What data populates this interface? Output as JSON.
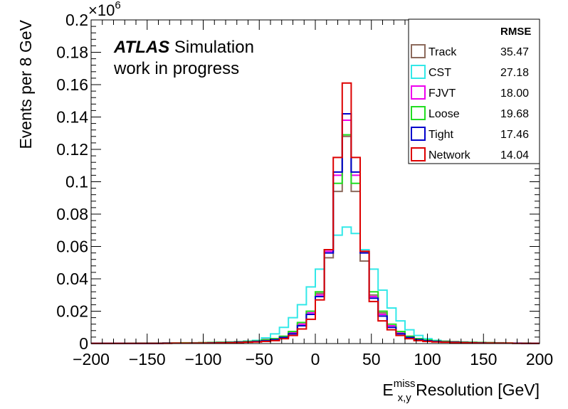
{
  "chart_data": {
    "type": "line",
    "style": "step-histogram",
    "xlabel_main": "E",
    "xlabel_sup": "miss",
    "xlabel_sub": "x,y",
    "xlabel_rest": " Resolution [GeV]",
    "ylabel": "Events per 8 GeV",
    "y_multiplier": "×10",
    "y_multiplier_exp": "6",
    "xlim": [
      -200,
      200
    ],
    "ylim": [
      0,
      0.2
    ],
    "xticks": [
      -200,
      -150,
      -100,
      -50,
      0,
      50,
      100,
      150,
      200
    ],
    "xtick_labels": [
      "−200",
      "−150",
      "−100",
      "−50",
      "0",
      "50",
      "100",
      "150",
      "200"
    ],
    "yticks": [
      0,
      0.02,
      0.04,
      0.06,
      0.08,
      0.1,
      0.12,
      0.14,
      0.16,
      0.18,
      0.2
    ],
    "ytick_labels": [
      "0",
      "0.02",
      "0.04",
      "0.06",
      "0.08",
      "0.1",
      "0.12",
      "0.14",
      "0.16",
      "0.18",
      "0.2"
    ],
    "bin_width": 8,
    "bin_edges_start": -200,
    "legend_position": "top-right",
    "annotation_bold": "ATLAS",
    "annotation_rest": " Simulation",
    "annotation_line2": "work in progress",
    "legend_header": "RMSE",
    "series": [
      {
        "name": "Track",
        "rmse": "35.47",
        "color": "#8c6a5c",
        "values": [
          0.0002,
          0.0002,
          0.0002,
          0.0002,
          0.0002,
          0.0003,
          0.0003,
          0.0003,
          0.0004,
          0.0004,
          0.0005,
          0.0005,
          0.0006,
          0.0007,
          0.0008,
          0.001,
          0.0012,
          0.0015,
          0.002,
          0.0025,
          0.003,
          0.0045,
          0.007,
          0.012,
          0.02,
          0.031,
          0.053,
          0.094,
          0.128,
          0.094,
          0.051,
          0.03,
          0.019,
          0.011,
          0.0065,
          0.0045,
          0.003,
          0.0025,
          0.002,
          0.0015,
          0.0012,
          0.001,
          0.0008,
          0.0007,
          0.0006,
          0.0005,
          0.0004,
          0.0003,
          0.0003,
          0.0002
        ]
      },
      {
        "name": "CST",
        "rmse": "27.18",
        "color": "#33e8e8",
        "values": [
          0.0001,
          0.0001,
          0.0001,
          0.0001,
          0.0001,
          0.0001,
          0.0001,
          0.0002,
          0.0002,
          0.0002,
          0.0003,
          0.0003,
          0.0004,
          0.0005,
          0.0006,
          0.0008,
          0.001,
          0.0015,
          0.002,
          0.0035,
          0.006,
          0.01,
          0.016,
          0.024,
          0.035,
          0.046,
          0.058,
          0.067,
          0.072,
          0.068,
          0.058,
          0.046,
          0.033,
          0.022,
          0.014,
          0.0085,
          0.005,
          0.003,
          0.002,
          0.0012,
          0.0008,
          0.0006,
          0.0004,
          0.0003,
          0.0003,
          0.0002,
          0.0002,
          0.0001,
          0.0001,
          0.0001
        ]
      },
      {
        "name": "FJVT",
        "rmse": "18.00",
        "color": "#ee00ee",
        "values": [
          0.0001,
          0.0001,
          0.0001,
          0.0001,
          0.0001,
          0.0001,
          0.0001,
          0.0001,
          0.0002,
          0.0002,
          0.0002,
          0.0003,
          0.0003,
          0.0004,
          0.0005,
          0.0006,
          0.0008,
          0.001,
          0.0013,
          0.0018,
          0.0025,
          0.004,
          0.0065,
          0.012,
          0.019,
          0.03,
          0.057,
          0.104,
          0.138,
          0.104,
          0.057,
          0.029,
          0.018,
          0.011,
          0.0063,
          0.004,
          0.0025,
          0.0018,
          0.0013,
          0.001,
          0.0008,
          0.0006,
          0.0005,
          0.0004,
          0.0003,
          0.0003,
          0.0002,
          0.0002,
          0.0001,
          0.0001
        ]
      },
      {
        "name": "Loose",
        "rmse": "19.68",
        "color": "#22dd22",
        "values": [
          0.0001,
          0.0001,
          0.0001,
          0.0001,
          0.0002,
          0.0002,
          0.0002,
          0.0002,
          0.0003,
          0.0003,
          0.0004,
          0.0004,
          0.0005,
          0.0006,
          0.0007,
          0.0008,
          0.001,
          0.0013,
          0.0016,
          0.0022,
          0.003,
          0.0045,
          0.0075,
          0.013,
          0.02,
          0.032,
          0.058,
          0.099,
          0.129,
          0.099,
          0.057,
          0.032,
          0.02,
          0.012,
          0.0075,
          0.0045,
          0.003,
          0.0022,
          0.0016,
          0.0013,
          0.001,
          0.0008,
          0.0007,
          0.0006,
          0.0005,
          0.0004,
          0.0003,
          0.0002,
          0.0002,
          0.0001
        ]
      },
      {
        "name": "Tight",
        "rmse": "17.46",
        "color": "#0000cc",
        "values": [
          0.0001,
          0.0001,
          0.0001,
          0.0001,
          0.0001,
          0.0001,
          0.0001,
          0.0001,
          0.0002,
          0.0002,
          0.0002,
          0.0003,
          0.0003,
          0.0004,
          0.0005,
          0.0006,
          0.0008,
          0.001,
          0.0013,
          0.0017,
          0.0024,
          0.0038,
          0.006,
          0.011,
          0.018,
          0.029,
          0.056,
          0.106,
          0.142,
          0.106,
          0.056,
          0.028,
          0.017,
          0.01,
          0.006,
          0.0038,
          0.0024,
          0.0017,
          0.0013,
          0.001,
          0.0008,
          0.0006,
          0.0005,
          0.0004,
          0.0003,
          0.0003,
          0.0002,
          0.0002,
          0.0001,
          0.0001
        ]
      },
      {
        "name": "Network",
        "rmse": "14.04",
        "color": "#dd0000",
        "values": [
          0.0001,
          0.0001,
          0.0001,
          0.0001,
          0.0001,
          0.0001,
          0.0001,
          0.0001,
          0.0001,
          0.0002,
          0.0002,
          0.0002,
          0.0003,
          0.0003,
          0.0004,
          0.0005,
          0.0006,
          0.0008,
          0.001,
          0.0013,
          0.0018,
          0.003,
          0.005,
          0.009,
          0.015,
          0.027,
          0.058,
          0.115,
          0.161,
          0.115,
          0.057,
          0.026,
          0.014,
          0.0085,
          0.005,
          0.003,
          0.0018,
          0.0013,
          0.001,
          0.0008,
          0.0006,
          0.0005,
          0.0004,
          0.0003,
          0.0003,
          0.0002,
          0.0002,
          0.0001,
          0.0001,
          0.0001
        ]
      }
    ]
  }
}
